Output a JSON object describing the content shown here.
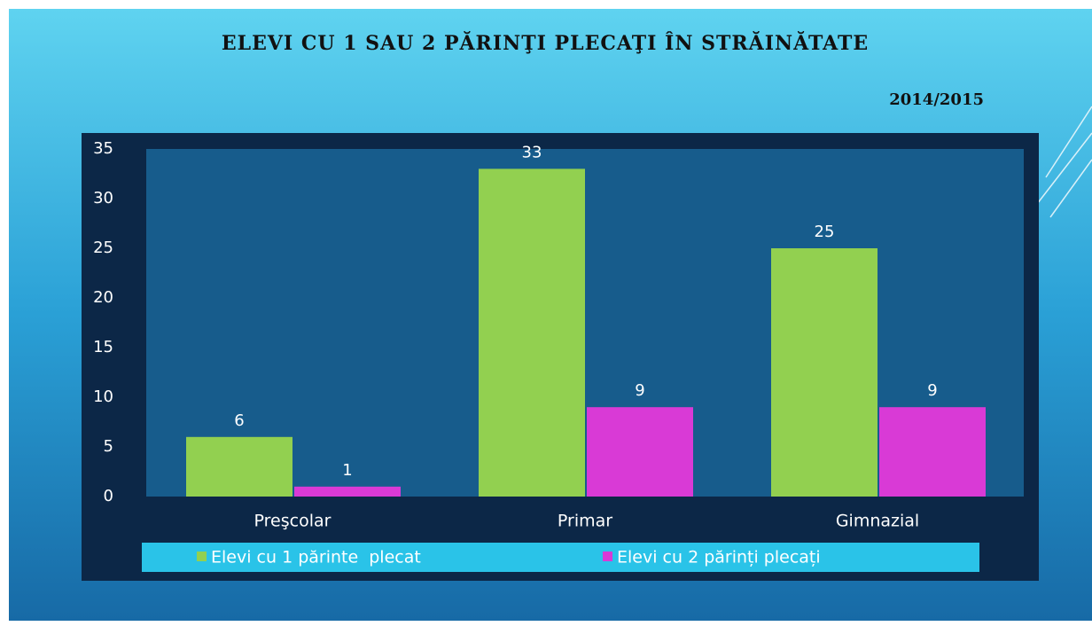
{
  "chart_data": {
    "type": "bar",
    "title": "ELEVI CU 1 SAU 2 PĂRINŢI PLECAŢI ÎN STRĂINĂTATE",
    "subtitle": "2014/2015",
    "categories": [
      "Preşcolar",
      "Primar",
      "Gimnazial"
    ],
    "series": [
      {
        "name": "Elevi cu 1 părinte  plecat",
        "color": "#92d050",
        "values": [
          6,
          33,
          25
        ]
      },
      {
        "name": "Elevi cu 2 părinți plecați",
        "color": "#d93ad6",
        "values": [
          1,
          9,
          9
        ]
      }
    ],
    "ylim": [
      0,
      35
    ],
    "yticks": [
      0,
      5,
      10,
      15,
      20,
      25,
      30,
      35
    ],
    "grid": false,
    "legend": "bottom",
    "data_labels": true
  }
}
